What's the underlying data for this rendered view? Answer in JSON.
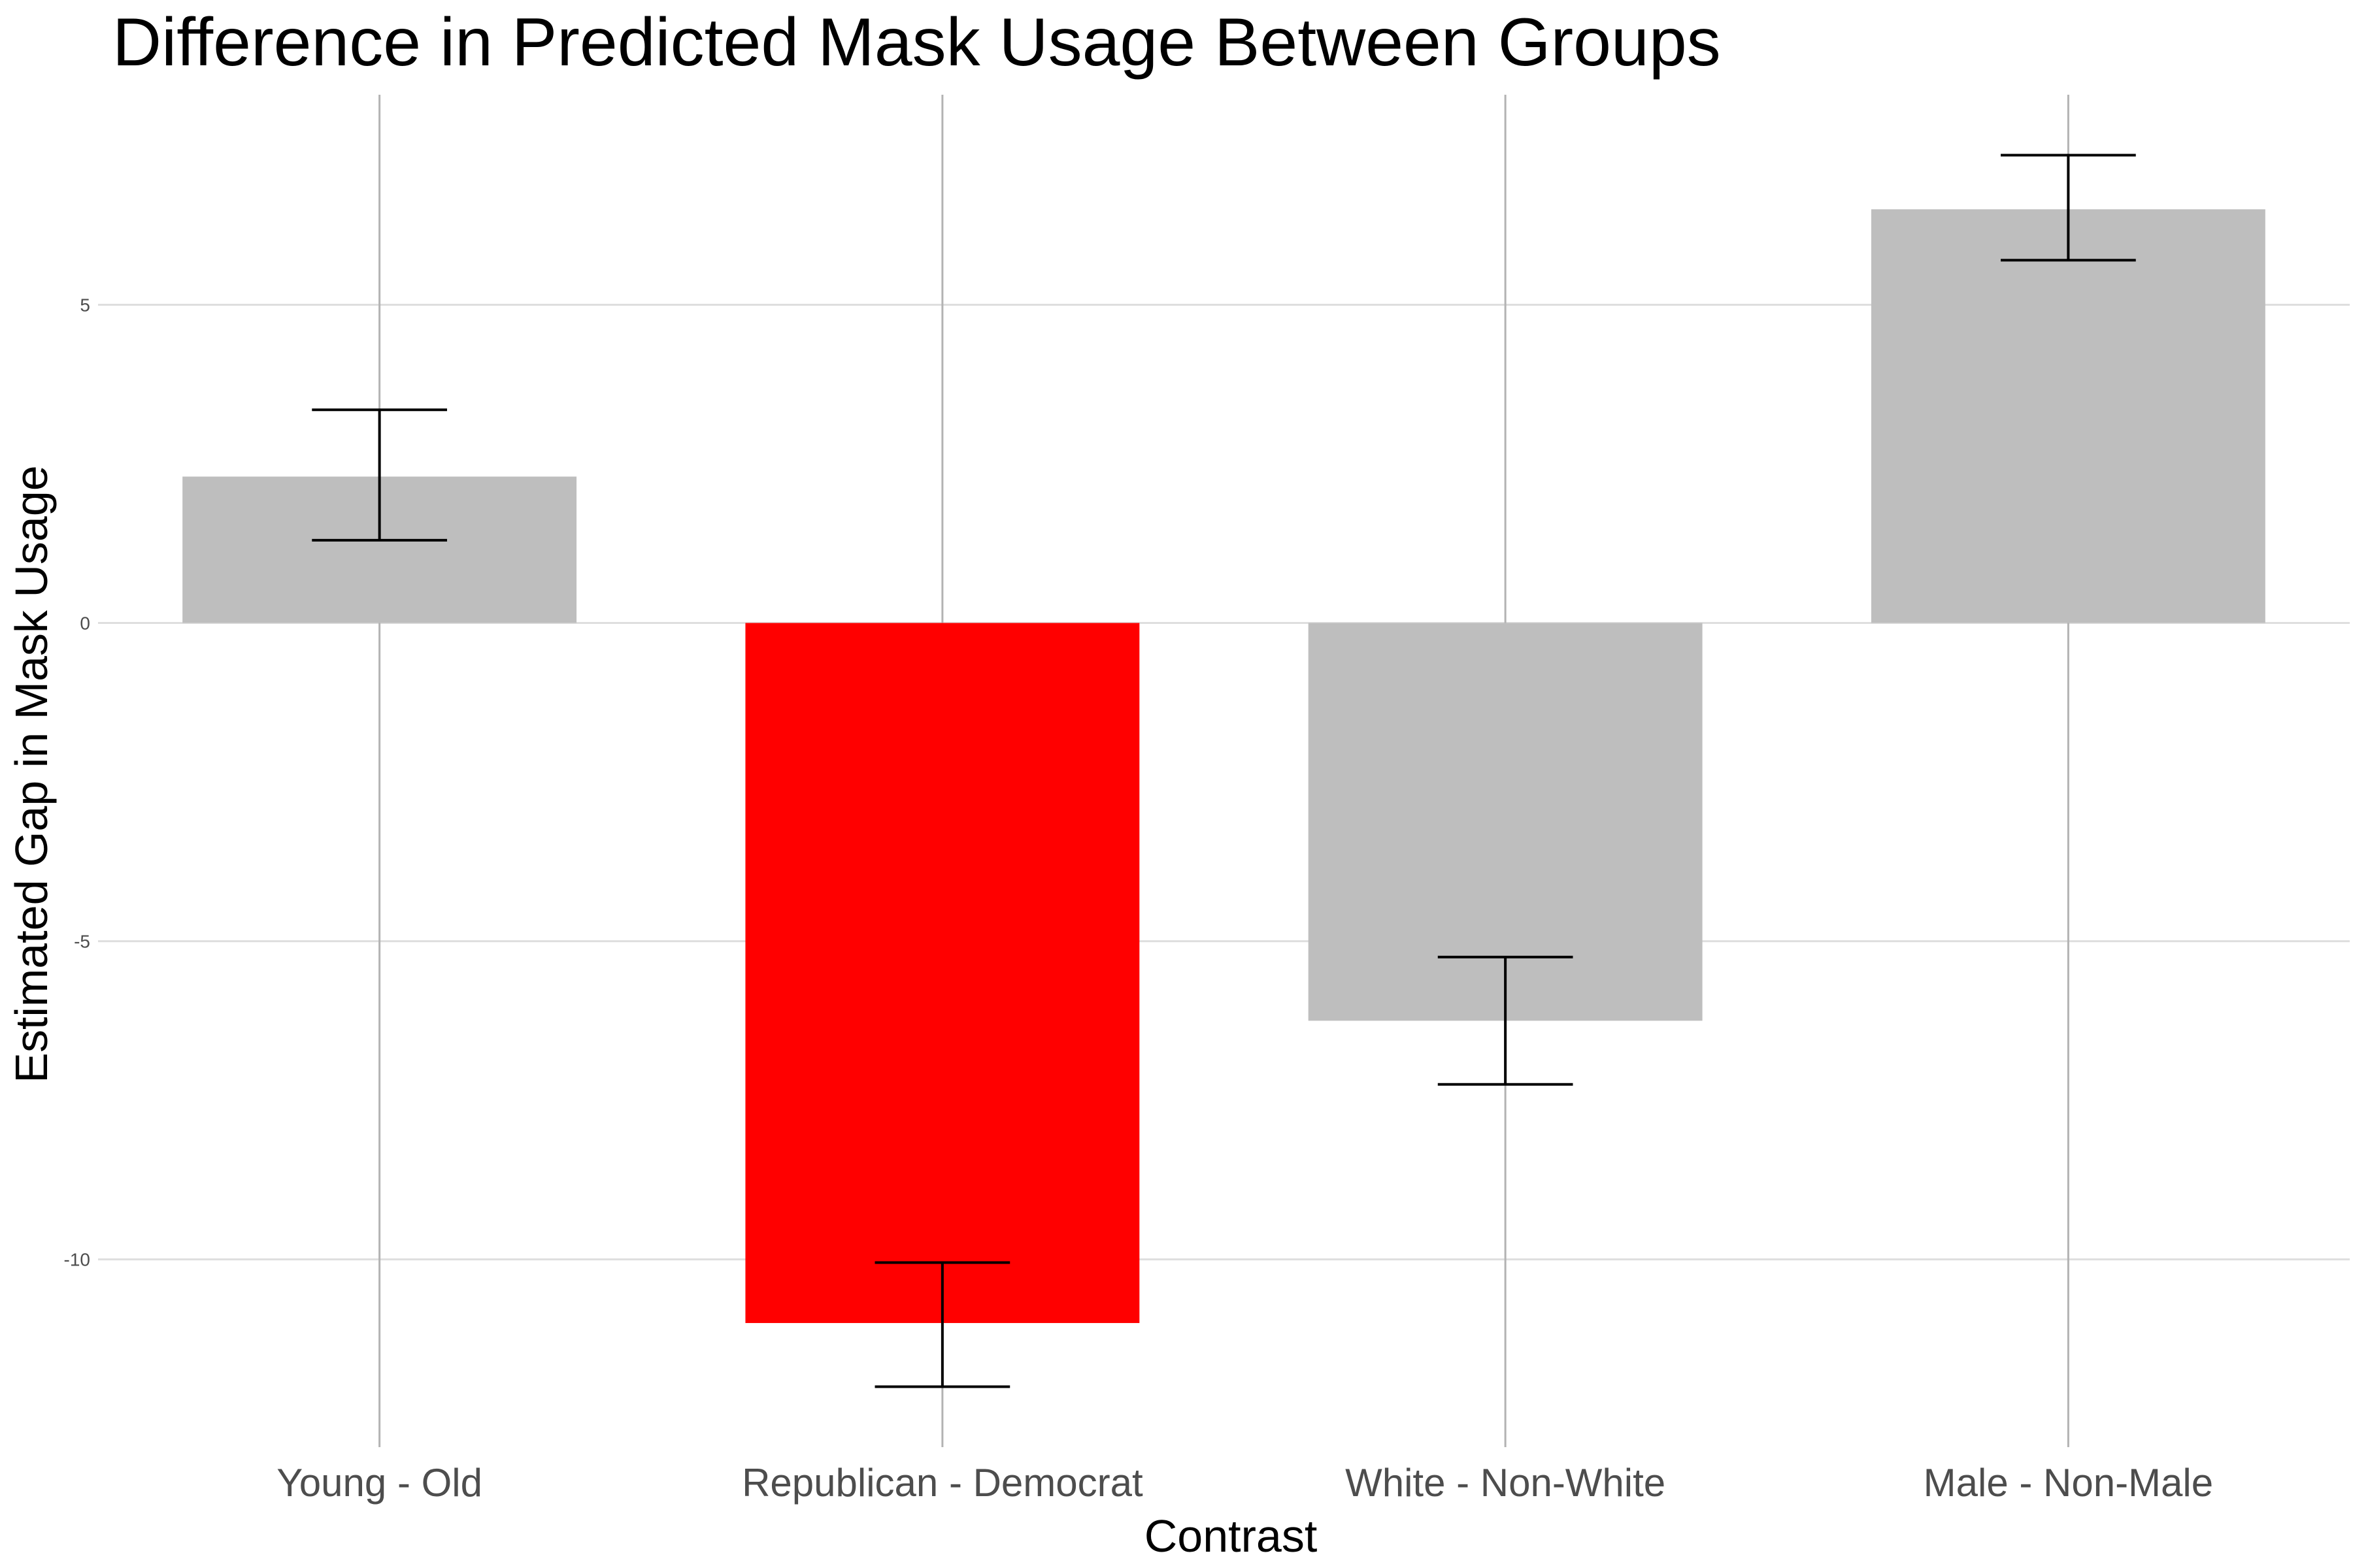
{
  "chart_data": {
    "type": "bar",
    "title": "Difference in Predicted Mask Usage Between Groups",
    "xlabel": "Contrast",
    "ylabel": "Estimated Gap in Mask Usage",
    "categories": [
      "Young - Old",
      "Republican - Democrat",
      "White - Non-White",
      "Male - Non-Male"
    ],
    "values": [
      2.3,
      -11.0,
      -6.25,
      6.5
    ],
    "error_bars": [
      {
        "low": 1.3,
        "high": 3.35
      },
      {
        "low": -12.0,
        "high": -10.05
      },
      {
        "low": -7.25,
        "high": -5.25
      },
      {
        "low": 5.7,
        "high": 7.35
      }
    ],
    "bar_colors": [
      "#bebebe",
      "#ff0000",
      "#bebebe",
      "#bebebe"
    ],
    "yticks": [
      -10,
      -5,
      0,
      5
    ],
    "ytick_labels": [
      "-10",
      "-5",
      "0",
      "5"
    ],
    "ylim": [
      -12.95,
      8.3
    ],
    "grid": true,
    "legend": "none"
  }
}
